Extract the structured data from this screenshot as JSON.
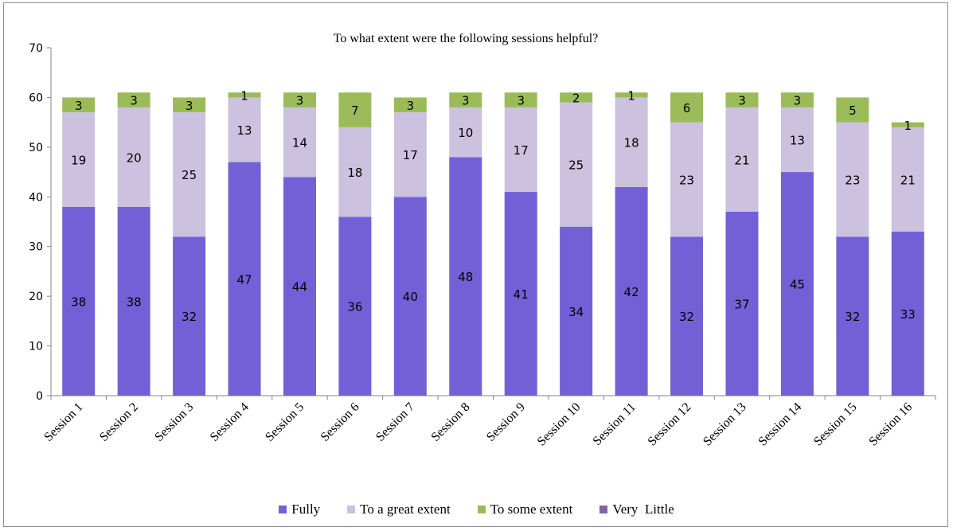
{
  "chart_data": {
    "type": "bar",
    "stacked": true,
    "title": "To what extent were the following sessions helpful?",
    "xlabel": "",
    "ylabel": "",
    "ylim": [
      0,
      70
    ],
    "yticks": [
      0,
      10,
      20,
      30,
      40,
      50,
      60,
      70
    ],
    "grid": false,
    "legend_position": "bottom",
    "categories": [
      "Session 1",
      "Session 2",
      "Session 3",
      "Session 4",
      "Session 5",
      "Session 6",
      "Session 7",
      "Session 8",
      "Session 9",
      "Session 10",
      "Session 11",
      "Session 12",
      "Session 13",
      "Session 14",
      "Session 15",
      "Session 16"
    ],
    "series": [
      {
        "name": "Fully",
        "color": "#7460d6",
        "values": [
          38,
          38,
          32,
          47,
          44,
          36,
          40,
          48,
          41,
          34,
          42,
          32,
          37,
          45,
          32,
          33
        ]
      },
      {
        "name": "To a great extent",
        "color": "#ccc1df",
        "values": [
          19,
          20,
          25,
          13,
          14,
          18,
          17,
          10,
          17,
          25,
          18,
          23,
          21,
          13,
          23,
          21
        ]
      },
      {
        "name": "To some extent",
        "color": "#9bbb59",
        "values": [
          3,
          3,
          3,
          1,
          3,
          7,
          3,
          3,
          3,
          2,
          1,
          6,
          3,
          3,
          5,
          1
        ]
      },
      {
        "name": "Very  Little",
        "color": "#8064a2",
        "values": [
          0,
          0,
          0,
          0,
          0,
          0,
          0,
          0,
          0,
          0,
          0,
          0,
          0,
          0,
          0,
          0
        ]
      }
    ]
  }
}
